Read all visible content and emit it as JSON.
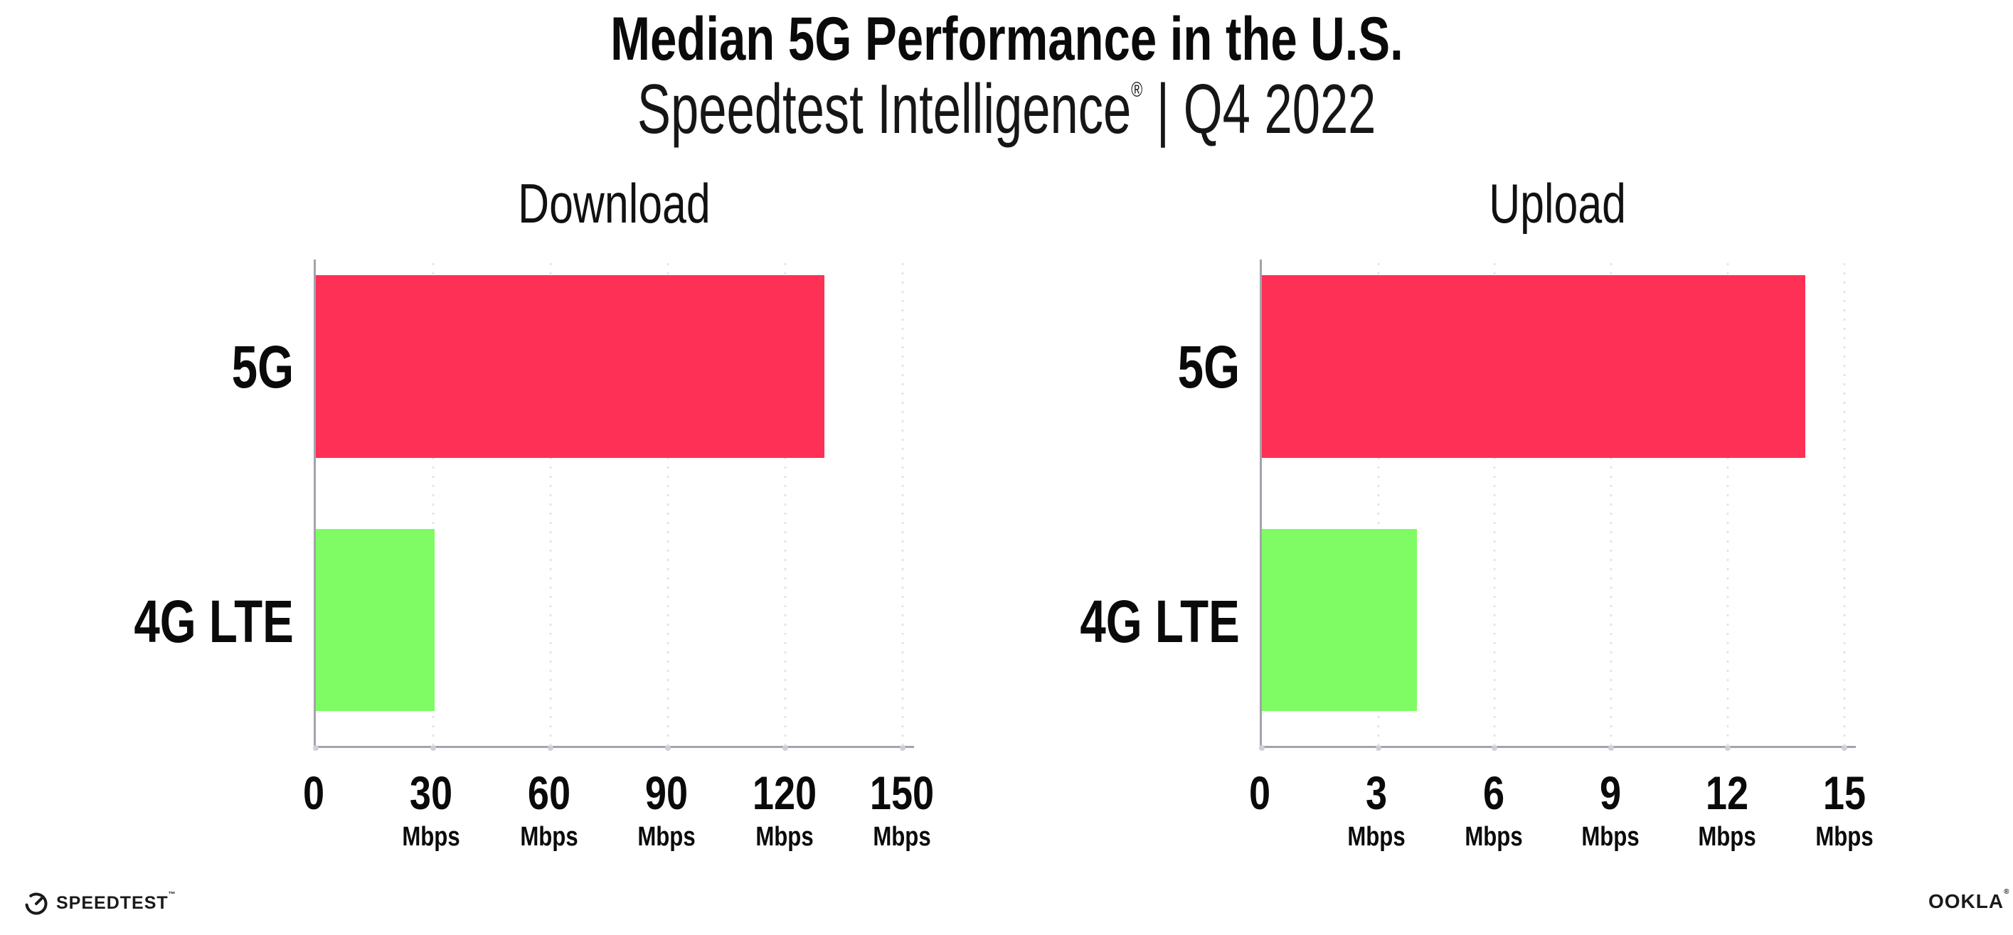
{
  "header": {
    "title": "Median 5G Performance in the U.S.",
    "subtitle_brand": "Speedtest Intelligence",
    "subtitle_reg": "®",
    "subtitle_rest": " | Q4 2022"
  },
  "colors": {
    "bar_5g": "#FF3056",
    "bar_4g_lte": "#7FFB64",
    "axis": "#a3a3ab",
    "grid_dot": "#e2e2ea",
    "background": "#ffffff",
    "text": "#0a0a0a"
  },
  "chart_data": [
    {
      "type": "bar",
      "orientation": "horizontal",
      "title": "Download",
      "categories": [
        "5G",
        "4G LTE"
      ],
      "values": [
        130,
        30.3
      ],
      "unit": "Mbps",
      "ticks": [
        0,
        30,
        60,
        90,
        120,
        150
      ],
      "tick_unit_label": "Mbps",
      "xlim": [
        0,
        153
      ],
      "axis_max": 153,
      "grid": "dotted-vertical",
      "legend": "none",
      "bar_colors": [
        "#FF3056",
        "#7FFB64"
      ]
    },
    {
      "type": "bar",
      "orientation": "horizontal",
      "title": "Upload",
      "categories": [
        "5G",
        "4G LTE"
      ],
      "values": [
        14,
        4
      ],
      "unit": "Mbps",
      "ticks": [
        0,
        3,
        6,
        9,
        12,
        15
      ],
      "tick_unit_label": "Mbps",
      "xlim": [
        0,
        15.3
      ],
      "axis_max": 15.3,
      "grid": "dotted-vertical",
      "legend": "none",
      "bar_colors": [
        "#FF3056",
        "#7FFB64"
      ]
    }
  ],
  "footer": {
    "speedtest_text": "SPEEDTEST",
    "speedtest_mark": "™",
    "ookla_text": "OOKLA",
    "ookla_mark": "®"
  }
}
